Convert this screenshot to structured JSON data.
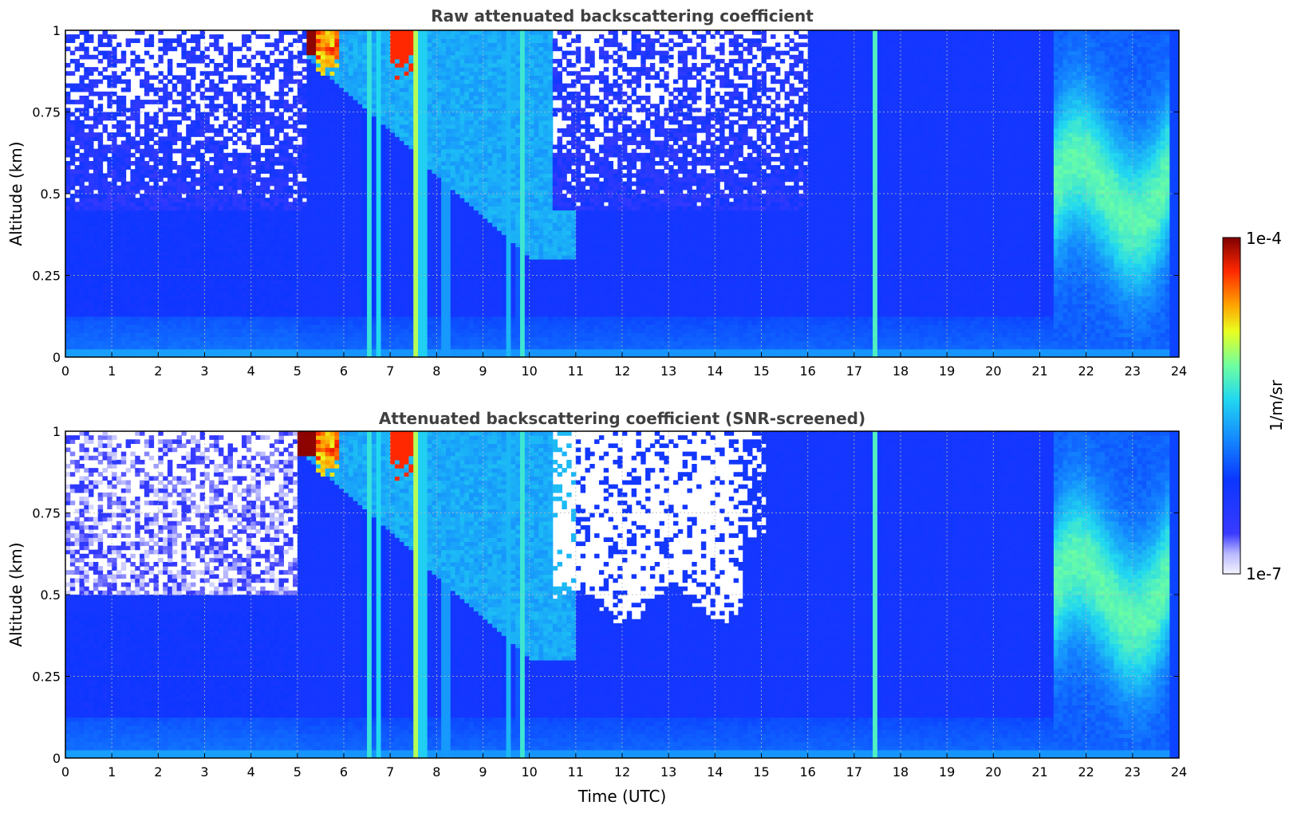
{
  "chart_data": [
    {
      "type": "heatmap",
      "title": "Raw attenuated backscattering coefficient",
      "xlabel": "",
      "ylabel": "Altitude (km)",
      "xlim": [
        0,
        24
      ],
      "ylim": [
        0,
        1
      ],
      "x_ticks": [
        "0",
        "1",
        "2",
        "3",
        "4",
        "5",
        "6",
        "7",
        "8",
        "9",
        "10",
        "11",
        "12",
        "13",
        "14",
        "15",
        "16",
        "17",
        "18",
        "19",
        "20",
        "21",
        "22",
        "23",
        "24"
      ],
      "y_ticks": [
        "0",
        "0.25",
        "0.5",
        "0.75",
        "1"
      ],
      "grid": true,
      "screened": false,
      "colormap": "jet",
      "log_scale": true,
      "features": {
        "boundary_layer_top_km": 0.45,
        "residual_layer_0_11h_km": [
          0.3,
          1.0
        ],
        "precip_shafts_hours": [
          6.5,
          6.8,
          7.55,
          7.65,
          8.2,
          9.55,
          9.8,
          17.45
        ],
        "saturated_cloud_base_5_7_5h_km": 0.9,
        "elevated_aerosol_21_24h_km": [
          0.25,
          0.8
        ]
      }
    },
    {
      "type": "heatmap",
      "title": "Attenuated backscattering coefficient (SNR-screened)",
      "xlabel": "Time (UTC)",
      "ylabel": "Altitude (km)",
      "xlim": [
        0,
        24
      ],
      "ylim": [
        0,
        1
      ],
      "x_ticks": [
        "0",
        "1",
        "2",
        "3",
        "4",
        "5",
        "6",
        "7",
        "8",
        "9",
        "10",
        "11",
        "12",
        "13",
        "14",
        "15",
        "16",
        "17",
        "18",
        "19",
        "20",
        "21",
        "22",
        "23",
        "24"
      ],
      "y_ticks": [
        "0",
        "0.25",
        "0.5",
        "0.75",
        "1"
      ],
      "grid": true,
      "screened": true,
      "colormap": "jet",
      "log_scale": true,
      "features": {
        "screened_region_0_5h_km": [
          0.45,
          1.0
        ],
        "screened_region_10_15h_km": [
          0.45,
          1.0
        ]
      }
    }
  ],
  "colorbar": {
    "label": "1/m/sr",
    "max_label": "1e-4",
    "min_label": "1e-7",
    "vmin": 1e-07,
    "vmax": 0.0001,
    "scale": "log"
  }
}
